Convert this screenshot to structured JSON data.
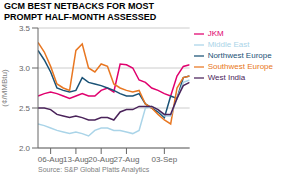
{
  "chart_data": {
    "type": "line",
    "title": "GCM BEST NETBACKS FOR MOST\nPROMPT HALF-MONTH ASSESSED",
    "ylabel": "(¢/MMBtu)",
    "annotations": [
      "Source: S&P Global Platts Analytics"
    ],
    "x": [
      0,
      1,
      2,
      3,
      4,
      5,
      6,
      7,
      8,
      9,
      10,
      11,
      12,
      13,
      14,
      15,
      16,
      17,
      18,
      19,
      20,
      21,
      22,
      23,
      24
    ],
    "xlim": [
      0,
      24
    ],
    "xticks": [
      {
        "value": 2,
        "label": "06-Aug"
      },
      {
        "value": 6,
        "label": "13-Aug"
      },
      {
        "value": 10,
        "label": "20-Aug"
      },
      {
        "value": 14,
        "label": "27-Aug"
      },
      {
        "value": 20,
        "label": "03-Sep"
      }
    ],
    "ylim": [
      2.0,
      3.5
    ],
    "yticks": [
      {
        "value": 2.0,
        "label": "2.0"
      },
      2.5,
      {
        "value": 3.0,
        "label": "3.0"
      },
      3.5
    ],
    "grid": "y",
    "legend": "upper right",
    "series": [
      {
        "name": "JKM",
        "color": "#e0006e",
        "values": [
          2.65,
          2.68,
          2.7,
          2.68,
          2.65,
          2.62,
          2.65,
          2.68,
          2.65,
          2.65,
          2.72,
          2.75,
          2.7,
          3.05,
          3.04,
          3.0,
          2.85,
          2.82,
          2.75,
          2.72,
          2.68,
          2.65,
          2.9,
          3.02,
          3.04
        ]
      },
      {
        "name": "Northwest Europe",
        "color": "#1a5276",
        "values": [
          3.22,
          3.1,
          2.95,
          2.75,
          2.72,
          2.7,
          2.72,
          2.88,
          2.82,
          2.8,
          2.78,
          2.75,
          2.72,
          2.68,
          2.65,
          2.65,
          2.68,
          2.55,
          2.5,
          2.45,
          2.38,
          2.65,
          2.62,
          2.88,
          2.9
        ]
      },
      {
        "name": "Southwest Europe",
        "color": "#e87722",
        "values": [
          3.32,
          3.2,
          3.02,
          2.8,
          2.75,
          2.72,
          3.22,
          3.3,
          3.0,
          2.95,
          3.05,
          3.02,
          2.8,
          2.75,
          2.72,
          2.7,
          2.72,
          2.55,
          2.5,
          2.42,
          2.35,
          2.3,
          2.75,
          2.88,
          2.9
        ]
      },
      {
        "name": "Middle East",
        "color": "#aad4e8",
        "values": [
          2.3,
          2.28,
          2.25,
          2.22,
          2.2,
          2.18,
          2.2,
          2.18,
          2.15,
          2.22,
          2.25,
          2.25,
          2.22,
          2.22,
          2.2,
          2.18,
          2.22,
          2.5,
          2.52,
          2.48,
          2.4,
          2.4,
          2.62,
          2.82,
          2.85
        ]
      },
      {
        "name": "West India",
        "color": "#4a235a",
        "values": [
          2.5,
          2.5,
          2.48,
          2.42,
          2.4,
          2.38,
          2.4,
          2.38,
          2.35,
          2.35,
          2.38,
          2.38,
          2.35,
          2.45,
          2.48,
          2.48,
          2.52,
          2.52,
          2.52,
          2.48,
          2.42,
          2.42,
          2.62,
          2.78,
          2.82
        ]
      }
    ]
  }
}
